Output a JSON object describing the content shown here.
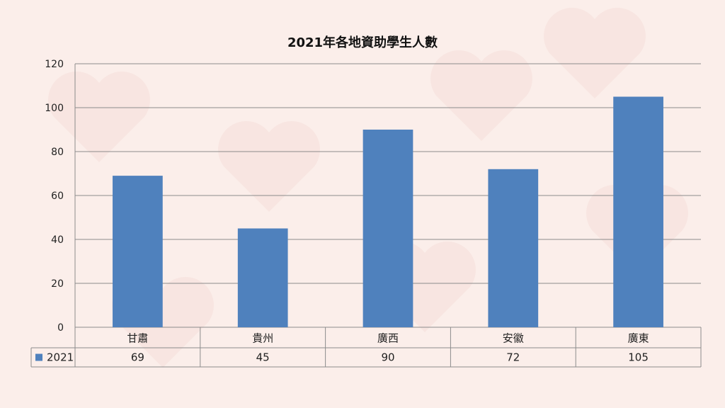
{
  "chart_data": {
    "type": "bar",
    "title": "2021年各地資助學生人數",
    "categories": [
      "甘肅",
      "貴州",
      "廣西",
      "安徽",
      "廣東"
    ],
    "series": [
      {
        "name": "2021",
        "values": [
          69,
          45,
          90,
          72,
          105
        ],
        "color": "#4f81bd"
      }
    ],
    "ylim": [
      0,
      120
    ],
    "yticks": [
      0,
      20,
      40,
      60,
      80,
      100,
      120
    ],
    "grid": true,
    "legend": "data-table",
    "data_table": true
  },
  "colors": {
    "background": "#fbeeea",
    "grid": "#8c8c8c",
    "bar": "#4f81bd"
  }
}
